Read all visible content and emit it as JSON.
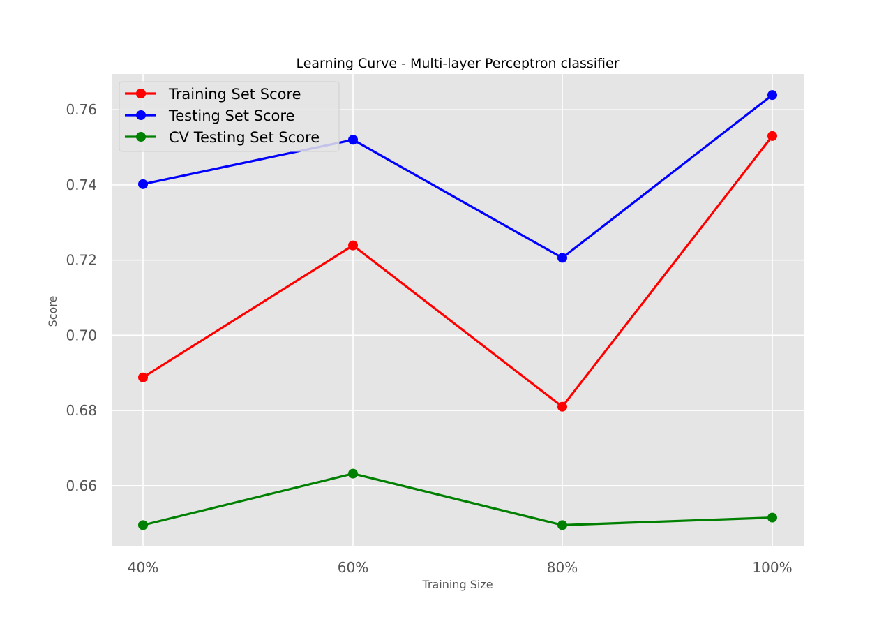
{
  "chart_data": {
    "type": "line",
    "title": "Learning Curve - Multi-layer Perceptron classifier",
    "xlabel": "Training Size",
    "ylabel": "Score",
    "categories": [
      "40%",
      "60%",
      "80%",
      "100%"
    ],
    "ylim": [
      0.644,
      0.7695
    ],
    "yticks": [
      "0.66",
      "0.68",
      "0.70",
      "0.72",
      "0.74",
      "0.76"
    ],
    "grid": true,
    "legend_position": "top-left",
    "background_color": "#e5e5e5",
    "grid_color": "#ffffff",
    "series": [
      {
        "name": "Training Set Score",
        "color": "#ff0000",
        "values": [
          0.6888,
          0.7239,
          0.681,
          0.753
        ]
      },
      {
        "name": "Testing Set Score",
        "color": "#0000ff",
        "values": [
          0.7402,
          0.752,
          0.7206,
          0.7639
        ]
      },
      {
        "name": "CV Testing Set Score",
        "color": "#008000",
        "values": [
          0.6495,
          0.6632,
          0.6495,
          0.6515
        ]
      }
    ]
  }
}
